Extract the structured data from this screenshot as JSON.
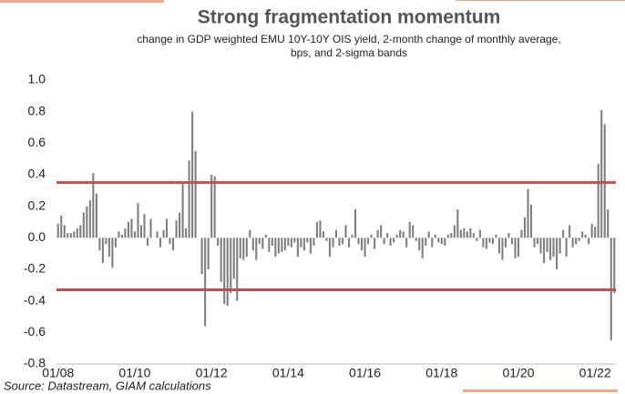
{
  "chart_data": {
    "type": "bar",
    "title": "Strong fragmentation momentum",
    "subtitle": [
      "change in GDP weighted EMU 10Y-10Y OIS yield, 2-month change of monthly average,",
      "bps, and 2-sigma bands"
    ],
    "source": "Source: Datastream, GIAM calculations",
    "color": "#808080",
    "bands": [
      {
        "value": 0.35,
        "color": "#c0504d"
      },
      {
        "value": -0.33,
        "color": "#c0504d"
      }
    ],
    "ylim": [
      -0.8,
      1.0
    ],
    "yticks": [
      {
        "value": 1.0,
        "label": "1.0"
      },
      0.8,
      0.6,
      0.4,
      0.2,
      {
        "value": 0.0,
        "label": "0.0"
      },
      -0.2,
      -0.4,
      -0.6,
      -0.8
    ],
    "categories": [
      "01/08",
      null,
      null,
      null,
      null,
      null,
      null,
      null,
      null,
      null,
      null,
      null,
      null,
      null,
      null,
      null,
      null,
      null,
      null,
      null,
      null,
      null,
      null,
      null,
      "01/10",
      null,
      null,
      null,
      null,
      null,
      null,
      null,
      null,
      null,
      null,
      null,
      null,
      null,
      null,
      null,
      null,
      null,
      null,
      null,
      null,
      null,
      null,
      null,
      "01/12",
      null,
      null,
      null,
      null,
      null,
      null,
      null,
      null,
      null,
      null,
      null,
      null,
      null,
      null,
      null,
      null,
      null,
      null,
      null,
      null,
      null,
      null,
      null,
      "01/14",
      null,
      null,
      null,
      null,
      null,
      null,
      null,
      null,
      null,
      null,
      null,
      null,
      null,
      null,
      null,
      null,
      null,
      null,
      null,
      null,
      null,
      null,
      null,
      "01/16",
      null,
      null,
      null,
      null,
      null,
      null,
      null,
      null,
      null,
      null,
      null,
      null,
      null,
      null,
      null,
      null,
      null,
      null,
      null,
      null,
      null,
      null,
      null,
      "01/18",
      null,
      null,
      null,
      null,
      null,
      null,
      null,
      null,
      null,
      null,
      null,
      null,
      null,
      null,
      null,
      null,
      null,
      null,
      null,
      null,
      null,
      null,
      null,
      "01/20",
      null,
      null,
      null,
      null,
      null,
      null,
      null,
      null,
      null,
      null,
      null,
      null,
      null,
      null,
      null,
      null,
      null,
      null,
      null,
      null,
      null,
      null,
      null,
      "01/22",
      null,
      null,
      null,
      null,
      null,
      null
    ],
    "values": [
      0.09,
      0.14,
      0.08,
      0.03,
      0.03,
      0.04,
      0.06,
      0.08,
      0.16,
      0.2,
      0.24,
      0.41,
      0.28,
      -0.08,
      -0.16,
      -0.04,
      -0.12,
      -0.19,
      -0.06,
      0.04,
      0.02,
      0.06,
      0.1,
      0.12,
      0.04,
      0.22,
      0.08,
      0.15,
      -0.05,
      0.12,
      0.0,
      0.04,
      -0.06,
      0.05,
      0.12,
      -0.04,
      -0.08,
      0.11,
      0.16,
      0.34,
      0.06,
      0.49,
      0.8,
      0.55,
      0.0,
      -0.23,
      -0.56,
      -0.2,
      0.4,
      0.39,
      -0.05,
      -0.28,
      -0.42,
      -0.43,
      -0.35,
      -0.26,
      -0.4,
      -0.13,
      -0.14,
      -0.12,
      0.05,
      -0.08,
      -0.14,
      -0.04,
      -0.07,
      0.02,
      -0.09,
      -0.05,
      -0.12,
      -0.1,
      -0.09,
      -0.08,
      -0.05,
      -0.06,
      -0.03,
      -0.12,
      -0.06,
      -0.08,
      -0.03,
      -0.1,
      -0.05,
      0.1,
      0.11,
      0.04,
      -0.02,
      -0.12,
      -0.06,
      0.05,
      -0.05,
      -0.04,
      0.08,
      -0.06,
      0.02,
      0.18,
      -0.04,
      -0.08,
      -0.12,
      -0.04,
      0.02,
      -0.07,
      0.05,
      0.08,
      -0.04,
      0.03,
      -0.05,
      -0.03,
      0.02,
      0.05,
      0.04,
      -0.06,
      0.1,
      0.08,
      -0.02,
      -0.08,
      -0.13,
      -0.05,
      0.04,
      -0.06,
      0.02,
      -0.03,
      -0.04,
      -0.05,
      0.02,
      0.03,
      0.08,
      0.18,
      0.05,
      0.06,
      0.04,
      0.06,
      0.03,
      -0.02,
      0.05,
      -0.06,
      -0.07,
      -0.03,
      -0.04,
      0.02,
      -0.1,
      -0.14,
      -0.06,
      0.03,
      -0.04,
      -0.13,
      -0.12,
      0.05,
      0.13,
      0.31,
      0.21,
      -0.06,
      -0.04,
      -0.1,
      -0.16,
      -0.09,
      -0.14,
      -0.12,
      -0.2,
      -0.1,
      0.05,
      -0.12,
      0.08,
      -0.06,
      -0.04,
      -0.02,
      0.04,
      0.02,
      -0.04,
      0.09,
      0.07,
      0.47,
      0.81,
      0.72,
      0.18,
      -0.65,
      -0.35
    ]
  }
}
